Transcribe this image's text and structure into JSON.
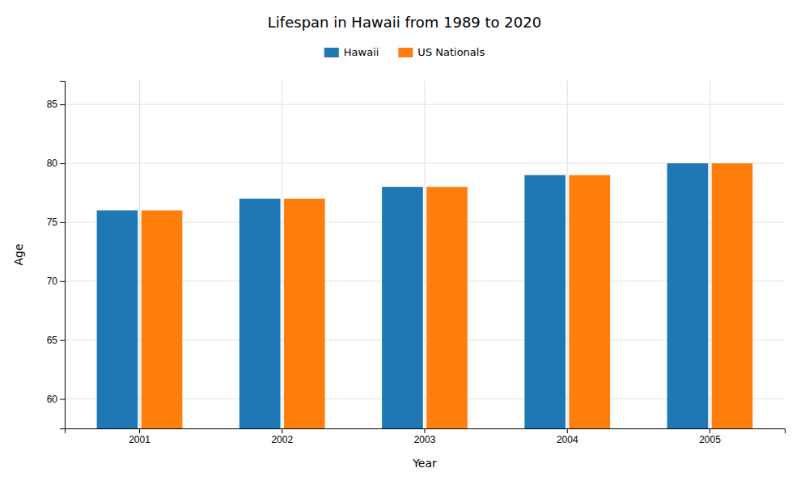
{
  "chart_data": {
    "type": "bar",
    "title": "Lifespan in Hawaii from 1989 to 2020",
    "xlabel": "Year",
    "ylabel": "Age",
    "categories": [
      "2001",
      "2002",
      "2003",
      "2004",
      "2005"
    ],
    "series": [
      {
        "name": "Hawaii",
        "values": [
          76,
          77,
          78,
          79,
          80
        ]
      },
      {
        "name": "US Nationals",
        "values": [
          76,
          77,
          78,
          79,
          80
        ]
      }
    ],
    "ylim": [
      57.5,
      87
    ],
    "yticks": [
      60,
      65,
      70,
      75,
      80,
      85
    ],
    "grid": true,
    "legend": "top"
  }
}
